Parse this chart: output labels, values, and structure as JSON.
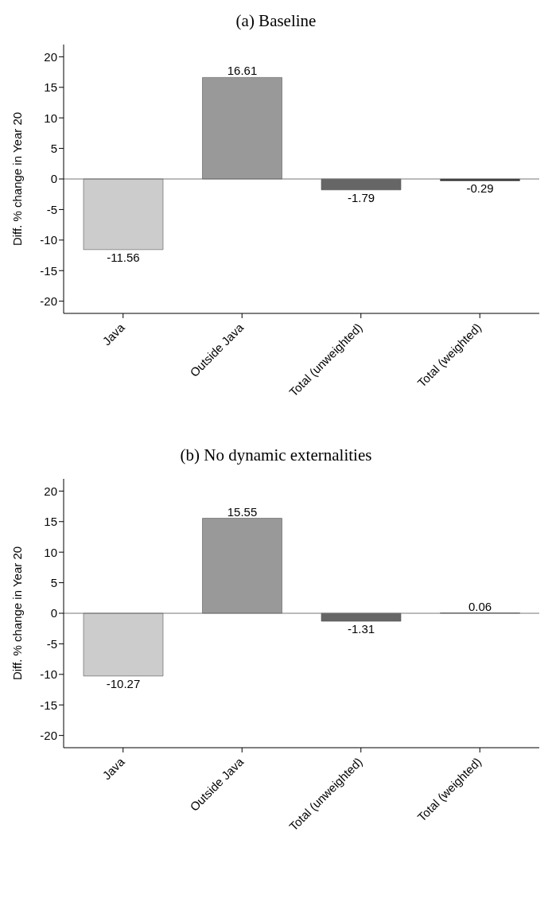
{
  "chart_data": [
    {
      "type": "bar",
      "title": "(a) Baseline",
      "ylabel": "Diff. % change in Year 20",
      "categories": [
        "Java",
        "Outside Java",
        "Total (unweighted)",
        "Total (weighted)"
      ],
      "values": [
        -11.56,
        16.61,
        -1.79,
        -0.29
      ],
      "colors": [
        "#cccccc",
        "#999999",
        "#666666",
        "#1a1a1a"
      ],
      "ylim": [
        -22,
        22
      ],
      "yticks": [
        -20,
        -15,
        -10,
        -5,
        0,
        5,
        10,
        15,
        20
      ],
      "grid": false,
      "data_labels": true,
      "ref_lines": [
        {
          "axis": "y",
          "value": 0,
          "color": "#777777"
        }
      ]
    },
    {
      "type": "bar",
      "title": "(b) No dynamic externalities",
      "ylabel": "Diff. % change in Year 20",
      "categories": [
        "Java",
        "Outside Java",
        "Total (unweighted)",
        "Total (weighted)"
      ],
      "values": [
        -10.27,
        15.55,
        -1.31,
        0.06
      ],
      "colors": [
        "#cccccc",
        "#999999",
        "#666666",
        "#1a1a1a"
      ],
      "ylim": [
        -22,
        22
      ],
      "yticks": [
        -20,
        -15,
        -10,
        -5,
        0,
        5,
        10,
        15,
        20
      ],
      "grid": false,
      "data_labels": true,
      "ref_lines": [
        {
          "axis": "y",
          "value": 0,
          "color": "#777777"
        }
      ]
    }
  ]
}
